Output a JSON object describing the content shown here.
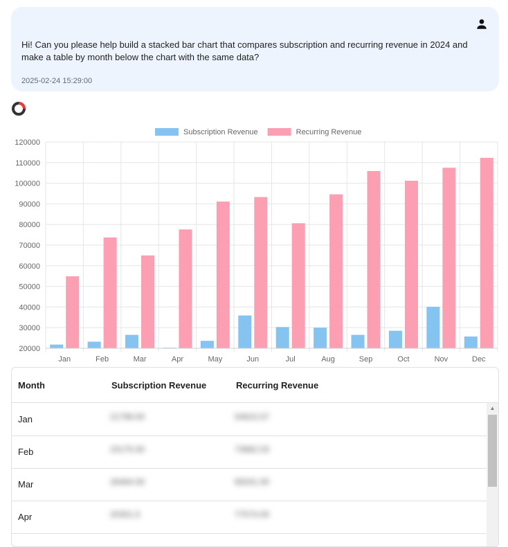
{
  "message": {
    "text": "Hi! Can you please help build a stacked bar chart that compares subscription and recurring revenue in 2024 and make a table by month below the chart with the same data?",
    "timestamp": "2025-02-24 15:29:00",
    "user_icon": "person-icon"
  },
  "assistant": {
    "logo_icon": "assistant-logo-icon"
  },
  "chart_data": {
    "type": "bar",
    "categories": [
      "Jan",
      "Feb",
      "Mar",
      "Apr",
      "May",
      "Jun",
      "Jul",
      "Aug",
      "Sep",
      "Oct",
      "Nov",
      "Dec"
    ],
    "series": [
      {
        "name": "Subscription Revenue",
        "values": [
          21800,
          23200,
          26500,
          20300,
          23600,
          35900,
          30300,
          30000,
          26500,
          28500,
          40100,
          25700
        ],
        "color": "#85c3f0"
      },
      {
        "name": "Recurring Revenue",
        "values": [
          54900,
          73700,
          65000,
          77600,
          91100,
          93300,
          80600,
          94600,
          105900,
          101200,
          107500,
          112300
        ],
        "color": "#fc9fb3"
      }
    ],
    "ylim": [
      20000,
      120000
    ],
    "yticks": [
      "20000",
      "30000",
      "40000",
      "50000",
      "60000",
      "70000",
      "80000",
      "90000",
      "100000",
      "110000",
      "120000"
    ],
    "legend_position": "top",
    "grid": true
  },
  "table": {
    "headers": [
      "Month",
      "Subscription Revenue",
      "Recurring Revenue"
    ],
    "rows": [
      {
        "month": "Jan",
        "sub": "21799.00",
        "rec": "54915.57"
      },
      {
        "month": "Feb",
        "sub": "23175.00",
        "rec": "73682.53"
      },
      {
        "month": "Mar",
        "sub": "26464.00",
        "rec": "65031.00"
      },
      {
        "month": "Apr",
        "sub": "20301.5",
        "rec": "77574.00"
      }
    ]
  }
}
